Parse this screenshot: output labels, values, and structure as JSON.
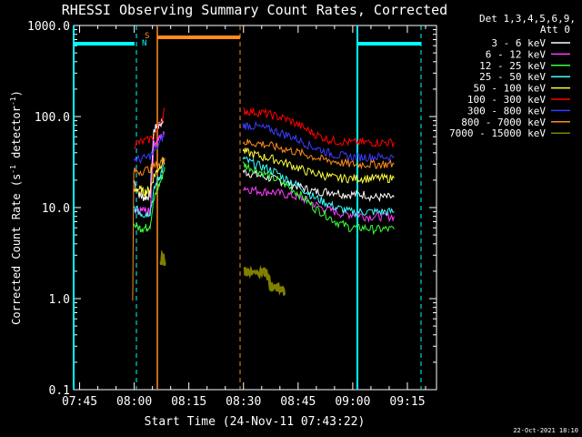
{
  "chart_data": {
    "type": "line",
    "title": "RHESSI Observing Summary Count Rates, Corrected",
    "xlabel": "Start Time (24-Nov-11 07:43:22)",
    "ylabel_main": "Corrected Count Rate (s",
    "ylabel_sup1": "-1",
    "ylabel_mid": " detector",
    "ylabel_sup2": "-1",
    "ylabel_end": ")",
    "ylabel": "Corrected Count Rate (s-1 detector-1)",
    "y_scale": "log",
    "ylim": [
      0.1,
      1000
    ],
    "xlim": [
      "07:43:22",
      "09:23:00"
    ],
    "x_tick_labels": [
      "07:45",
      "08:00",
      "08:15",
      "08:30",
      "08:45",
      "09:00",
      "09:15"
    ],
    "y_tick_labels": [
      "0.1",
      "1.0",
      "10.0",
      "100.0",
      "1000.0"
    ],
    "legend_placement": "top-right",
    "legend_header": [
      "Det 1,3,4,5,6,9,",
      "Att 0"
    ],
    "footer_date": "22-Oct-2021 18:10",
    "markers": {
      "s_label": "S",
      "n_label": "N"
    },
    "x_unit": "minutes after 07:43:22",
    "series": [
      {
        "name": "3 - 6 keV",
        "color": "#ffffff",
        "segments": [
          {
            "x": [
              16.5,
              18,
              19,
              20,
              21,
              22,
              23,
              24,
              24.5
            ],
            "y": [
              20,
              14,
              13,
              13,
              14,
              70,
              80,
              85,
              90
            ]
          },
          {
            "x": [
              46.5,
              48,
              50,
              52,
              54,
              56,
              58,
              60,
              62,
              64,
              66,
              68,
              70,
              72,
              74,
              76,
              78,
              80,
              82,
              84,
              86,
              88
            ],
            "y": [
              25,
              24,
              23,
              22,
              21,
              20,
              19,
              18,
              17,
              16,
              15,
              15,
              15,
              15,
              14,
              14,
              14,
              14,
              13,
              13,
              13,
              13
            ]
          }
        ]
      },
      {
        "name": "6 - 12 keV",
        "color": "#ff3cff",
        "segments": [
          {
            "x": [
              16.5,
              18,
              19,
              20,
              21,
              22,
              23,
              24,
              25
            ],
            "y": [
              8.5,
              9,
              9.5,
              9,
              9,
              50,
              55,
              60,
              65
            ]
          },
          {
            "x": [
              46.5,
              48,
              50,
              52,
              54,
              56,
              58,
              60,
              62,
              64,
              66,
              68,
              70,
              72,
              74,
              76,
              78,
              80,
              82,
              84,
              86,
              88
            ],
            "y": [
              17,
              16,
              15.5,
              15,
              15,
              14.5,
              14,
              13.5,
              13,
              12,
              11,
              10,
              9.5,
              9,
              8.5,
              8.5,
              8.5,
              8,
              8,
              8,
              8,
              8
            ]
          }
        ]
      },
      {
        "name": "12 - 25 keV",
        "color": "#3cff3c",
        "segments": [
          {
            "x": [
              16.5,
              18,
              19,
              20,
              21,
              22,
              23,
              24,
              25
            ],
            "y": [
              6.5,
              6,
              6,
              6,
              6.5,
              12,
              16,
              20,
              28
            ]
          },
          {
            "x": [
              46.5,
              48,
              50,
              52,
              54,
              56,
              58,
              60,
              62,
              64,
              66,
              68,
              70,
              72,
              74,
              76,
              78,
              80,
              82,
              84,
              86,
              88
            ],
            "y": [
              30,
              28,
              26,
              24,
              22,
              20,
              18,
              16,
              14,
              12,
              10,
              9,
              8,
              7,
              6.5,
              6,
              6,
              6,
              5.8,
              5.8,
              5.8,
              5.8
            ]
          }
        ]
      },
      {
        "name": "25 - 50 keV",
        "color": "#3cffff",
        "segments": [
          {
            "x": [
              16.5,
              18,
              19,
              20,
              21,
              22,
              23,
              24,
              25
            ],
            "y": [
              10,
              9,
              8.5,
              8.5,
              9,
              15,
              20,
              24,
              30
            ]
          },
          {
            "x": [
              46.5,
              48,
              50,
              52,
              54,
              56,
              58,
              60,
              62,
              64,
              66,
              68,
              70,
              72,
              74,
              76,
              78,
              80,
              82,
              84,
              86,
              88
            ],
            "y": [
              35,
              32,
              30,
              28,
              26,
              24,
              21,
              19,
              17,
              15,
              13,
              12,
              11,
              10,
              9.5,
              9,
              9,
              9,
              9,
              9,
              9,
              9
            ]
          }
        ]
      },
      {
        "name": "50 - 100 keV",
        "color": "#ffff3c",
        "segments": [
          {
            "x": [
              16.5,
              18,
              19,
              20,
              21,
              22,
              23,
              24,
              25
            ],
            "y": [
              16,
              16,
              15,
              15,
              16,
              22,
              26,
              30,
              35
            ]
          },
          {
            "x": [
              46.5,
              48,
              50,
              52,
              54,
              56,
              58,
              60,
              62,
              64,
              66,
              68,
              70,
              72,
              74,
              76,
              78,
              80,
              82,
              84,
              86,
              88
            ],
            "y": [
              42,
              40,
              38,
              36,
              35,
              33,
              31,
              29,
              27,
              25,
              24,
              23,
              22,
              21,
              21,
              21,
              21,
              21,
              21,
              21,
              21,
              21
            ]
          }
        ]
      },
      {
        "name": "100 - 300 keV",
        "color": "#ff0000",
        "segments": [
          {
            "x": [
              16.5,
              18,
              20,
              22,
              24,
              25
            ],
            "y": [
              50,
              52,
              54,
              60,
              90,
              120
            ]
          },
          {
            "x": [
              46.5,
              48,
              50,
              52,
              54,
              56,
              58,
              60,
              62,
              64,
              66,
              68,
              70,
              72,
              74,
              76,
              78,
              80,
              82,
              84,
              86,
              88
            ],
            "y": [
              115,
              115,
              112,
              110,
              105,
              100,
              95,
              88,
              80,
              72,
              65,
              60,
              56,
              54,
              53,
              52,
              52,
              52,
              52,
              52,
              52,
              52
            ]
          }
        ]
      },
      {
        "name": "300 - 800 keV",
        "color": "#3c3cff",
        "segments": [
          {
            "x": [
              16.5,
              18,
              20,
              22,
              24,
              25
            ],
            "y": [
              34,
              34,
              35,
              40,
              55,
              65
            ]
          },
          {
            "x": [
              46.5,
              48,
              50,
              52,
              54,
              56,
              58,
              60,
              62,
              64,
              66,
              68,
              70,
              72,
              74,
              76,
              78,
              80,
              82,
              84,
              86,
              88
            ],
            "y": [
              80,
              80,
              78,
              75,
              72,
              68,
              64,
              60,
              55,
              50,
              46,
              43,
              40,
              38,
              37,
              36,
              36,
              36,
              36,
              36,
              36,
              36
            ]
          }
        ]
      },
      {
        "name": "800 - 7000 keV",
        "color": "#ff8c1e",
        "segments": [
          {
            "x": [
              16.2,
              16.5,
              18,
              20,
              22,
              24,
              25
            ],
            "y": [
              1,
              25,
              25,
              26,
              28,
              32,
              35
            ]
          },
          {
            "x": [
              46.5,
              48,
              50,
              52,
              54,
              56,
              58,
              60,
              62,
              64,
              66,
              68,
              70,
              72,
              74,
              76,
              78,
              80,
              82,
              84,
              86,
              88
            ],
            "y": [
              52,
              52,
              51,
              50,
              48,
              46,
              44,
              42,
              40,
              38,
              36,
              34,
              33,
              32,
              31,
              30,
              30,
              30,
              30,
              30,
              30,
              30
            ]
          }
        ]
      },
      {
        "name": "7000 - 15000 keV",
        "color": "#808000",
        "segments": [
          {
            "x": [
              24,
              24.5,
              25
            ],
            "y": [
              2.5,
              3,
              2.5
            ]
          },
          {
            "x": [
              47,
              48,
              50,
              52,
              53,
              54,
              55,
              56,
              57,
              58
            ],
            "y": [
              2,
              2,
              2,
              2,
              2,
              1.4,
              1.3,
              1.3,
              1.3,
              1.1
            ]
          }
        ]
      }
    ]
  }
}
